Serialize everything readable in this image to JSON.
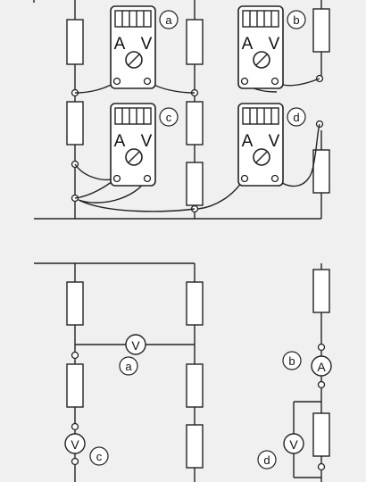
{
  "meters": {
    "a": {
      "label": "a",
      "left": "A",
      "right": "V"
    },
    "b": {
      "label": "b",
      "left": "A",
      "right": "V"
    },
    "c": {
      "label": "c",
      "left": "A",
      "right": "V"
    },
    "d": {
      "label": "d",
      "left": "A",
      "right": "V"
    }
  },
  "schematic": {
    "voltmeter_a": {
      "symbol": "V",
      "label": "a"
    },
    "ammeter_b": {
      "symbol": "A",
      "label": "b"
    },
    "voltmeter_c": {
      "symbol": "V",
      "label": "c"
    },
    "voltmeter_d": {
      "symbol": "V",
      "label": "d"
    }
  }
}
